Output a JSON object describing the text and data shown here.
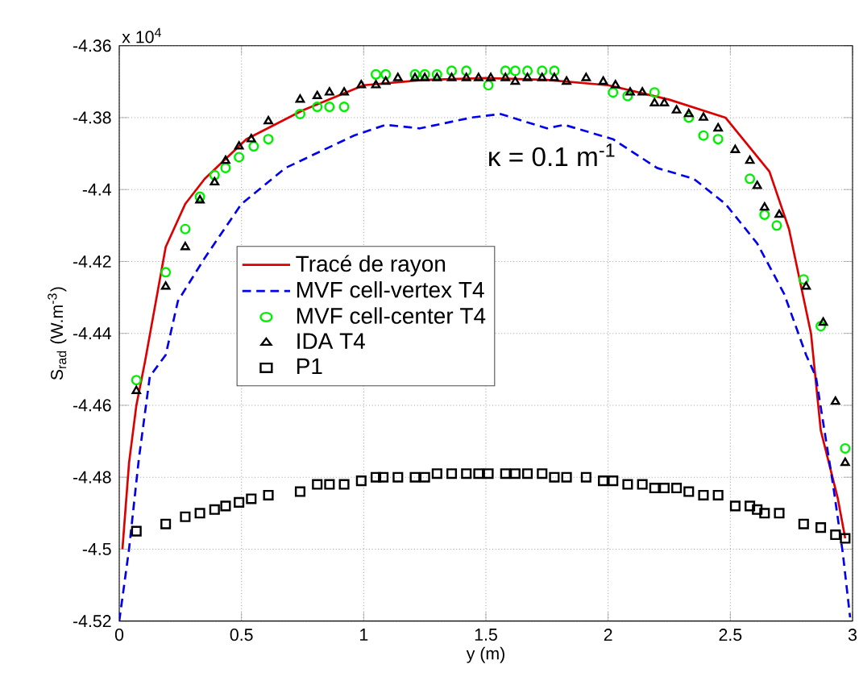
{
  "chart_data": {
    "type": "line",
    "xlabel": "y (m)",
    "ylabel": "S$_{rad}$ (W.m$^{-3}$)",
    "annotations": [
      "x 10$^{4}$",
      "κ = 0.1 m$^{-1}$"
    ],
    "xlim": [
      0,
      3
    ],
    "ylim": [
      -4.52,
      -4.36
    ],
    "xticks": [
      0,
      0.5,
      1,
      1.5,
      2,
      2.5,
      3
    ],
    "yticks": [
      -4.52,
      -4.5,
      -4.48,
      -4.46,
      -4.44,
      -4.42,
      -4.4,
      -4.38,
      -4.36
    ],
    "grid": true,
    "legend": "left",
    "series": [
      {
        "name": "Tracé de rayon",
        "type": "line",
        "color": "#dd0000",
        "line_style": "solid",
        "marker": "none",
        "x": [
          0.013,
          0.04,
          0.07,
          0.105,
          0.19,
          0.27,
          0.35,
          0.52,
          0.75,
          1.0,
          1.25,
          1.5,
          1.75,
          2.0,
          2.25,
          2.48,
          2.66,
          2.74,
          2.83,
          2.87,
          2.94,
          2.97
        ],
        "values": [
          -4.5,
          -4.476,
          -4.46,
          -4.448,
          -4.416,
          -4.404,
          -4.397,
          -4.386,
          -4.378,
          -4.371,
          -4.3695,
          -4.369,
          -4.3695,
          -4.371,
          -4.375,
          -4.38,
          -4.395,
          -4.411,
          -4.44,
          -4.467,
          -4.486,
          -4.497
        ]
      },
      {
        "name": "MVF cell-vertex T4",
        "type": "line",
        "color": "#0000ee",
        "line_style": "dashed",
        "marker": "none",
        "x": [
          0,
          0.04,
          0.08,
          0.125,
          0.19,
          0.24,
          0.35,
          0.5,
          0.68,
          0.96,
          1.09,
          1.23,
          1.44,
          1.56,
          1.75,
          1.82,
          2.02,
          2.2,
          2.35,
          2.48,
          2.61,
          2.72,
          2.81,
          2.85,
          2.92,
          2.96,
          2.99
        ],
        "values": [
          -4.52,
          -4.5,
          -4.475,
          -4.452,
          -4.446,
          -4.431,
          -4.419,
          -4.404,
          -4.394,
          -4.385,
          -4.382,
          -4.383,
          -4.38,
          -4.379,
          -4.383,
          -4.382,
          -4.386,
          -4.394,
          -4.397,
          -4.404,
          -4.415,
          -4.429,
          -4.446,
          -4.452,
          -4.482,
          -4.501,
          -4.519
        ]
      },
      {
        "name": "MVF cell-center T4",
        "type": "scatter",
        "color": "#00ee00",
        "marker": "circle",
        "x": [
          0.07,
          0.19,
          0.27,
          0.33,
          0.39,
          0.435,
          0.49,
          0.55,
          0.61,
          0.74,
          0.81,
          0.86,
          0.92,
          1.05,
          1.09,
          1.21,
          1.25,
          1.3,
          1.36,
          1.42,
          1.51,
          1.58,
          1.62,
          1.67,
          1.73,
          1.78,
          2.02,
          2.08,
          2.19,
          2.33,
          2.39,
          2.45,
          2.58,
          2.64,
          2.69,
          2.8,
          2.87,
          2.97
        ],
        "values": [
          -4.453,
          -4.423,
          -4.411,
          -4.402,
          -4.396,
          -4.394,
          -4.391,
          -4.388,
          -4.386,
          -4.379,
          -4.377,
          -4.377,
          -4.377,
          -4.368,
          -4.368,
          -4.368,
          -4.368,
          -4.368,
          -4.367,
          -4.367,
          -4.371,
          -4.367,
          -4.367,
          -4.367,
          -4.367,
          -4.367,
          -4.373,
          -4.374,
          -4.373,
          -4.38,
          -4.385,
          -4.386,
          -4.397,
          -4.407,
          -4.41,
          -4.425,
          -4.438,
          -4.472
        ]
      },
      {
        "name": "IDA T4",
        "type": "scatter",
        "color": "#000000",
        "marker": "triangle",
        "x": [
          0.07,
          0.19,
          0.27,
          0.33,
          0.39,
          0.435,
          0.49,
          0.54,
          0.61,
          0.74,
          0.81,
          0.86,
          0.92,
          0.99,
          1.05,
          1.09,
          1.14,
          1.21,
          1.25,
          1.3,
          1.36,
          1.42,
          1.47,
          1.52,
          1.58,
          1.62,
          1.67,
          1.73,
          1.78,
          1.83,
          1.91,
          1.98,
          2.03,
          2.09,
          2.14,
          2.19,
          2.23,
          2.28,
          2.33,
          2.39,
          2.45,
          2.52,
          2.58,
          2.61,
          2.64,
          2.7,
          2.81,
          2.88,
          2.93,
          2.97
        ],
        "values": [
          -4.456,
          -4.427,
          -4.416,
          -4.403,
          -4.398,
          -4.392,
          -4.388,
          -4.386,
          -4.381,
          -4.375,
          -4.374,
          -4.373,
          -4.373,
          -4.371,
          -4.371,
          -4.37,
          -4.369,
          -4.369,
          -4.369,
          -4.369,
          -4.369,
          -4.369,
          -4.369,
          -4.369,
          -4.369,
          -4.37,
          -4.369,
          -4.369,
          -4.369,
          -4.37,
          -4.369,
          -4.37,
          -4.371,
          -4.373,
          -4.373,
          -4.376,
          -4.376,
          -4.378,
          -4.379,
          -4.38,
          -4.383,
          -4.389,
          -4.392,
          -4.399,
          -4.405,
          -4.407,
          -4.427,
          -4.437,
          -4.459,
          -4.476
        ]
      },
      {
        "name": "P1",
        "type": "scatter",
        "color": "#000000",
        "marker": "square",
        "x": [
          0.07,
          0.19,
          0.27,
          0.33,
          0.39,
          0.435,
          0.49,
          0.54,
          0.61,
          0.74,
          0.81,
          0.86,
          0.92,
          0.99,
          1.05,
          1.08,
          1.14,
          1.21,
          1.25,
          1.3,
          1.36,
          1.42,
          1.47,
          1.51,
          1.58,
          1.62,
          1.67,
          1.73,
          1.78,
          1.83,
          1.91,
          1.98,
          2.02,
          2.08,
          2.14,
          2.19,
          2.23,
          2.28,
          2.33,
          2.39,
          2.45,
          2.52,
          2.58,
          2.61,
          2.64,
          2.7,
          2.8,
          2.87,
          2.93,
          2.97
        ],
        "values": [
          -4.495,
          -4.493,
          -4.491,
          -4.49,
          -4.489,
          -4.488,
          -4.487,
          -4.486,
          -4.485,
          -4.484,
          -4.482,
          -4.482,
          -4.482,
          -4.481,
          -4.48,
          -4.48,
          -4.48,
          -4.48,
          -4.48,
          -4.479,
          -4.479,
          -4.479,
          -4.479,
          -4.479,
          -4.479,
          -4.479,
          -4.479,
          -4.479,
          -4.48,
          -4.48,
          -4.48,
          -4.481,
          -4.481,
          -4.482,
          -4.482,
          -4.483,
          -4.483,
          -4.483,
          -4.484,
          -4.485,
          -4.485,
          -4.488,
          -4.488,
          -4.489,
          -4.49,
          -4.49,
          -4.493,
          -4.494,
          -4.496,
          -4.497
        ]
      }
    ]
  }
}
